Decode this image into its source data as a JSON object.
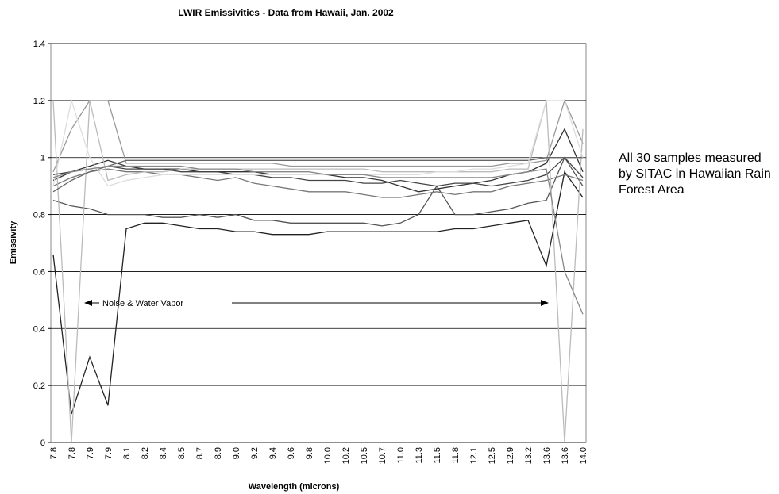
{
  "chart_data": {
    "type": "line",
    "title": "LWIR Emissivities - Data from Hawaii, Jan. 2002",
    "x_label": "Wavelength (microns)",
    "y_label": "Emissivity",
    "annotation": "Noise & Water Vapor",
    "note": "All 30 samples measured by SITAC in Hawaiian Rain Forest Area",
    "categories": [
      "7.8",
      "7.8",
      "7.9",
      "7.9",
      "8.1",
      "8.2",
      "8.4",
      "8.5",
      "8.7",
      "8.9",
      "9.0",
      "9.2",
      "9.4",
      "9.6",
      "9.8",
      "10.0",
      "10.2",
      "10.5",
      "10.7",
      "11.0",
      "11.3",
      "11.5",
      "11.8",
      "12.1",
      "12.5",
      "12.9",
      "13.2",
      "13.6",
      "13.6",
      "14.0"
    ],
    "ylim": [
      0,
      1.4
    ],
    "yticks": [
      0,
      0.2,
      0.4,
      0.6,
      0.8,
      1,
      1.2,
      1.4
    ],
    "grid": true,
    "series": [
      {
        "color": "#222222",
        "values": [
          0.66,
          0.1,
          0.3,
          0.13,
          0.75,
          0.77,
          0.77,
          0.76,
          0.75,
          0.75,
          0.74,
          0.74,
          0.73,
          0.73,
          0.73,
          0.74,
          0.74,
          0.74,
          0.74,
          0.74,
          0.74,
          0.74,
          0.75,
          0.75,
          0.76,
          0.77,
          0.78,
          0.62,
          0.95,
          0.86
        ]
      },
      {
        "color": "#555555",
        "values": [
          0.85,
          0.83,
          0.82,
          0.8,
          0.8,
          0.8,
          0.79,
          0.79,
          0.8,
          0.79,
          0.8,
          0.78,
          0.78,
          0.77,
          0.77,
          0.77,
          0.77,
          0.77,
          0.76,
          0.77,
          0.8,
          0.9,
          0.8,
          0.8,
          0.81,
          0.82,
          0.84,
          0.85,
          1.0,
          0.9
        ]
      },
      {
        "color": "#333333",
        "values": [
          0.92,
          0.95,
          0.97,
          0.99,
          0.97,
          0.96,
          0.96,
          0.96,
          0.95,
          0.95,
          0.95,
          0.95,
          0.94,
          0.94,
          0.94,
          0.94,
          0.93,
          0.93,
          0.92,
          0.9,
          0.88,
          0.89,
          0.9,
          0.91,
          0.92,
          0.94,
          0.95,
          0.98,
          1.1,
          0.95
        ]
      },
      {
        "color": "#777777",
        "values": [
          0.9,
          0.93,
          0.95,
          0.96,
          0.95,
          0.95,
          0.94,
          0.94,
          0.93,
          0.92,
          0.93,
          0.91,
          0.9,
          0.89,
          0.88,
          0.88,
          0.88,
          0.87,
          0.86,
          0.86,
          0.87,
          0.88,
          0.87,
          0.88,
          0.88,
          0.9,
          0.91,
          0.92,
          0.94,
          0.92
        ]
      },
      {
        "color": "#999999",
        "values": [
          0.95,
          1.1,
          1.2,
          1.2,
          0.98,
          0.98,
          0.98,
          0.98,
          0.98,
          0.98,
          0.98,
          0.98,
          0.98,
          0.97,
          0.97,
          0.97,
          0.97,
          0.97,
          0.97,
          0.97,
          0.97,
          0.97,
          0.97,
          0.97,
          0.97,
          0.98,
          0.98,
          0.99,
          1.2,
          1.05
        ]
      },
      {
        "color": "#bbbbbb",
        "values": [
          1.2,
          0.0,
          1.2,
          0.92,
          0.94,
          0.95,
          0.95,
          0.96,
          0.96,
          0.96,
          0.96,
          0.96,
          0.96,
          0.96,
          0.96,
          0.96,
          0.96,
          0.96,
          0.95,
          0.95,
          0.95,
          0.95,
          0.95,
          0.95,
          0.95,
          0.96,
          0.96,
          1.2,
          0.0,
          1.1
        ]
      },
      {
        "color": "#444444",
        "values": [
          0.94,
          0.95,
          0.96,
          0.97,
          0.96,
          0.96,
          0.96,
          0.95,
          0.95,
          0.95,
          0.94,
          0.94,
          0.93,
          0.93,
          0.92,
          0.92,
          0.92,
          0.91,
          0.91,
          0.92,
          0.91,
          0.9,
          0.91,
          0.91,
          0.9,
          0.91,
          0.92,
          0.94,
          1.0,
          0.93
        ]
      },
      {
        "color": "#666666",
        "values": [
          0.88,
          0.92,
          0.95,
          0.97,
          0.99,
          0.99,
          0.99,
          0.99,
          0.99,
          0.99,
          0.99,
          0.99,
          0.99,
          0.99,
          0.99,
          0.99,
          0.99,
          0.99,
          0.99,
          0.99,
          0.99,
          0.99,
          0.99,
          0.99,
          0.99,
          0.99,
          0.99,
          1.0,
          1.0,
          1.0
        ]
      },
      {
        "color": "#dddddd",
        "values": [
          0.9,
          1.2,
          1.0,
          0.9,
          0.92,
          0.93,
          0.94,
          0.94,
          0.94,
          0.94,
          0.94,
          0.94,
          0.94,
          0.94,
          0.94,
          0.94,
          0.94,
          0.94,
          0.94,
          0.94,
          0.94,
          0.95,
          0.95,
          0.96,
          0.96,
          0.97,
          0.98,
          1.2,
          1.2,
          1.0
        ]
      },
      {
        "color": "#888888",
        "values": [
          0.93,
          0.95,
          0.96,
          0.97,
          0.97,
          0.97,
          0.97,
          0.97,
          0.96,
          0.96,
          0.96,
          0.95,
          0.95,
          0.95,
          0.95,
          0.94,
          0.94,
          0.94,
          0.93,
          0.93,
          0.93,
          0.93,
          0.93,
          0.93,
          0.93,
          0.94,
          0.95,
          0.96,
          0.6,
          0.45
        ]
      }
    ]
  }
}
